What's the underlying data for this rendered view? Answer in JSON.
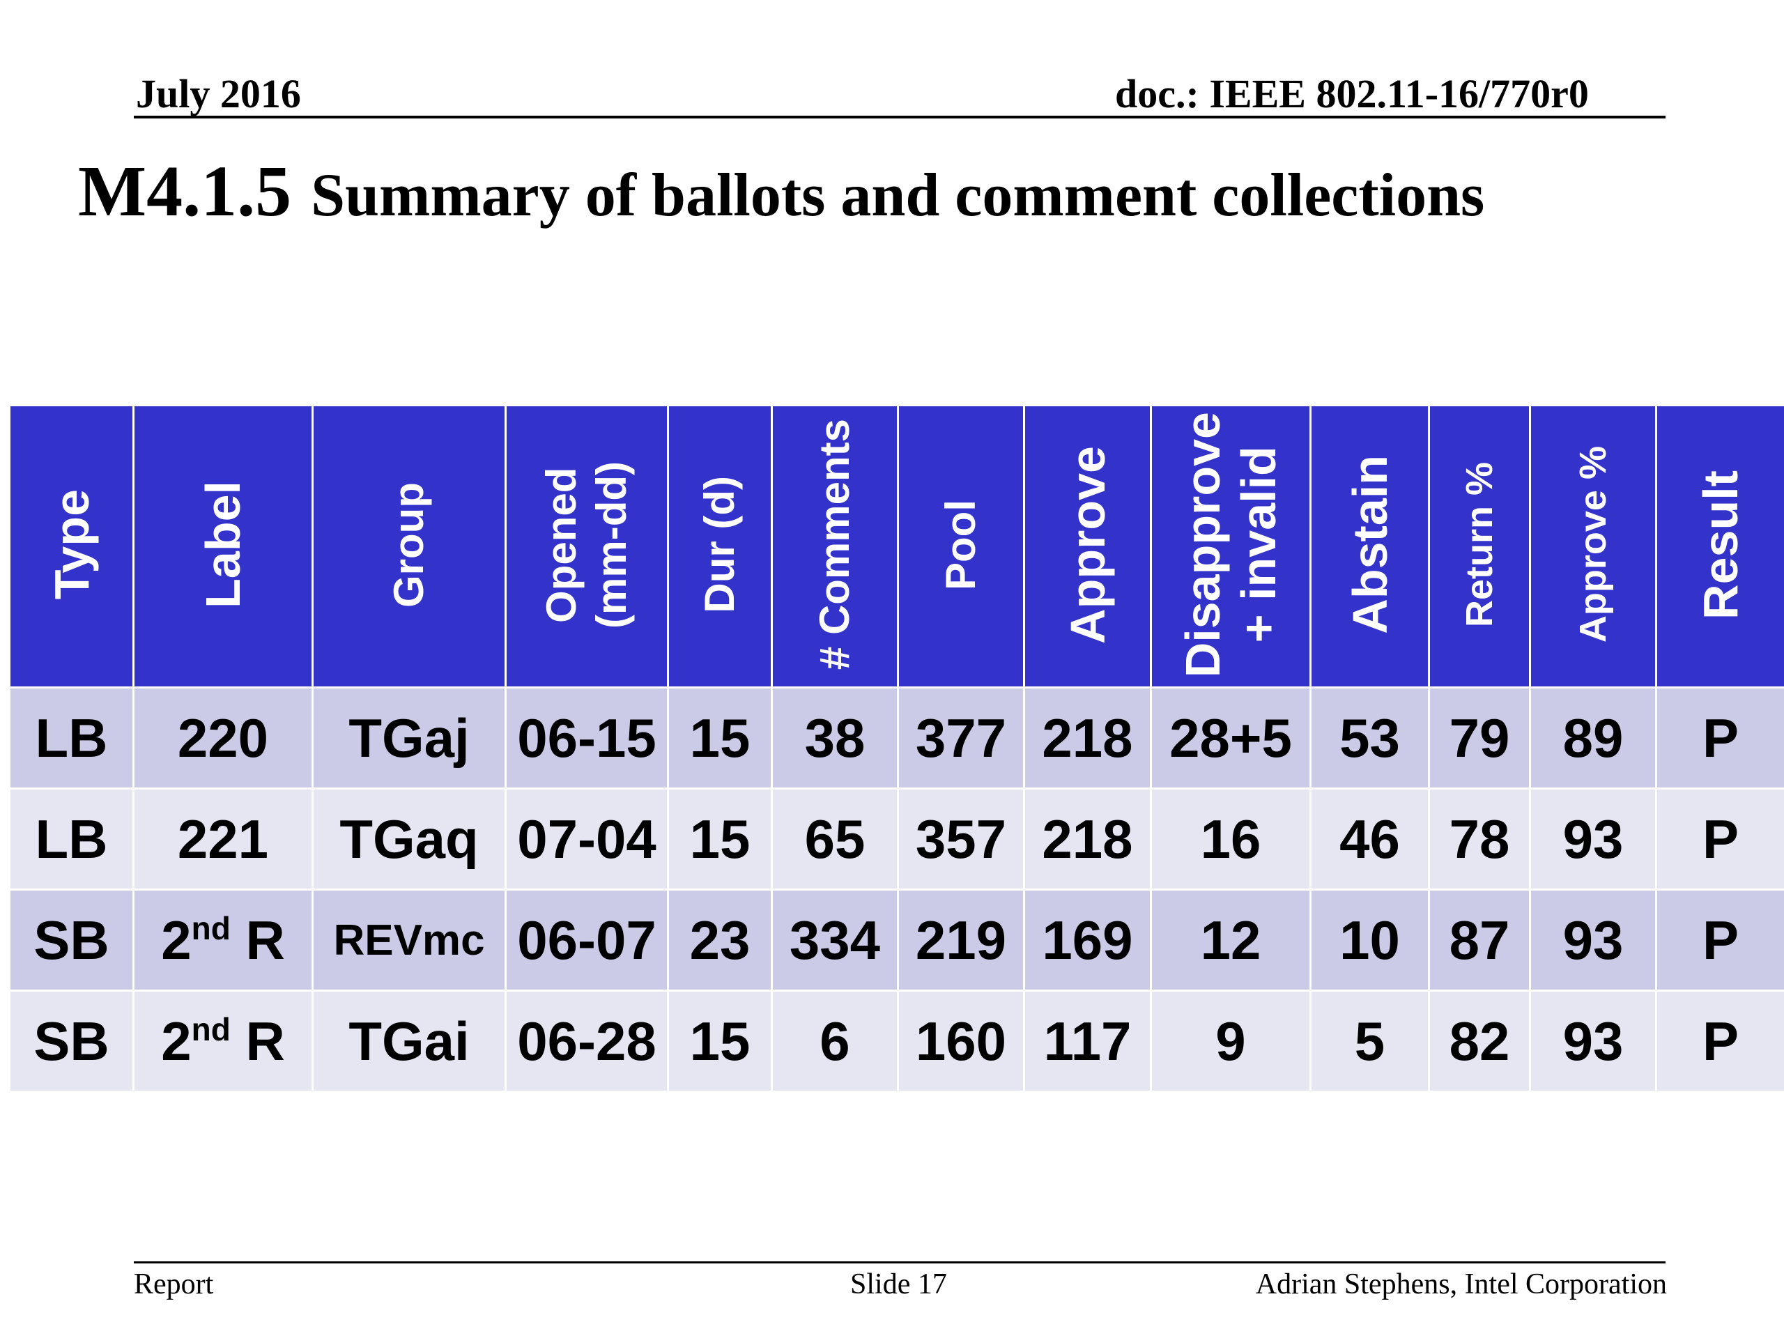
{
  "header": {
    "date": "July 2016",
    "doc_id": "doc.: IEEE 802.11-16/770r0"
  },
  "title": {
    "number": "M4.1.5",
    "text": "Summary of ballots and comment collections"
  },
  "table": {
    "columns": [
      {
        "label": "Type"
      },
      {
        "label": "Label"
      },
      {
        "label": "Group"
      },
      {
        "label": "Opened\n(mm-dd)"
      },
      {
        "label": "Dur (d)"
      },
      {
        "label": "# Comments"
      },
      {
        "label": "Pool"
      },
      {
        "label": "Approve"
      },
      {
        "label": "Disapprove\n+ invalid"
      },
      {
        "label": "Abstain"
      },
      {
        "label": "Return %"
      },
      {
        "label": "Approve %"
      },
      {
        "label": "Result"
      }
    ],
    "rows": [
      {
        "type": "LB",
        "label": "220",
        "label_sup": "",
        "label_tail": "",
        "group": "TGaj",
        "opened": "06-15",
        "dur": "15",
        "comments": "38",
        "pool": "377",
        "approve": "218",
        "disapprove": "28+5",
        "abstain": "53",
        "return_pct": "79",
        "approve_pct": "89",
        "result": "P"
      },
      {
        "type": "LB",
        "label": "221",
        "label_sup": "",
        "label_tail": "",
        "group": "TGaq",
        "opened": "07-04",
        "dur": "15",
        "comments": "65",
        "pool": "357",
        "approve": "218",
        "disapprove": "16",
        "abstain": "46",
        "return_pct": "78",
        "approve_pct": "93",
        "result": "P"
      },
      {
        "type": "SB",
        "label": "2",
        "label_sup": "nd",
        "label_tail": " R",
        "group": "REVmc",
        "opened": "06-07",
        "dur": "23",
        "comments": "334",
        "pool": "219",
        "approve": "169",
        "disapprove": "12",
        "abstain": "10",
        "return_pct": "87",
        "approve_pct": "93",
        "result": "P"
      },
      {
        "type": "SB",
        "label": "2",
        "label_sup": "nd",
        "label_tail": " R",
        "group": "TGai",
        "opened": "06-28",
        "dur": "15",
        "comments": "6",
        "pool": "160",
        "approve": "117",
        "disapprove": "9",
        "abstain": "5",
        "return_pct": "82",
        "approve_pct": "93",
        "result": "P"
      }
    ]
  },
  "footer": {
    "left": "Report",
    "center": "Slide 17",
    "right": "Adrian Stephens, Intel Corporation"
  },
  "colors": {
    "header_bg": "#3333cc",
    "row_dark": "#cbcbe7",
    "row_light": "#e6e6f3"
  }
}
